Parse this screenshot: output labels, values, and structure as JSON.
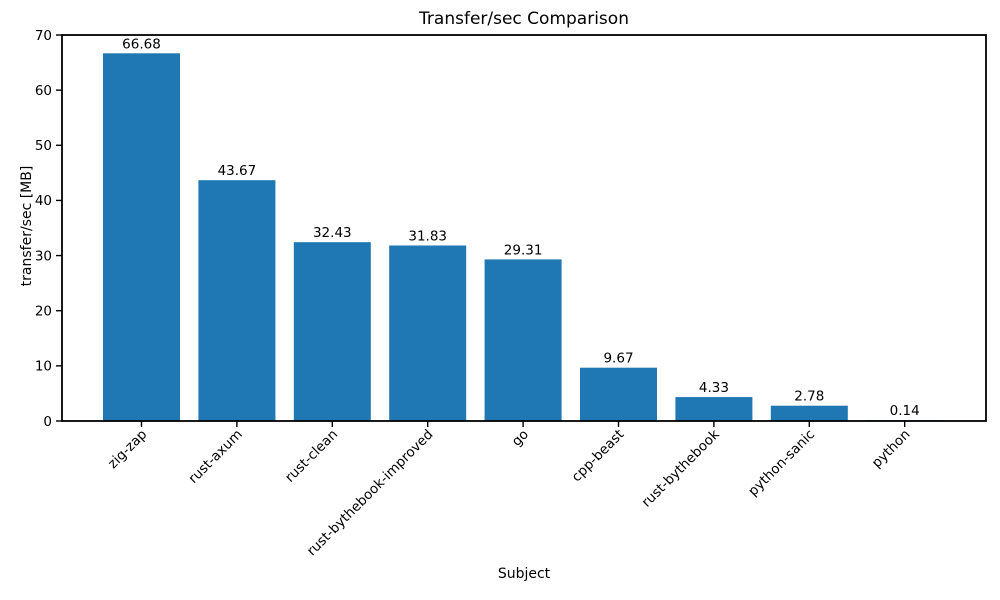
{
  "chart_data": {
    "type": "bar",
    "title": "Transfer/sec Comparison",
    "xlabel": "Subject",
    "ylabel": "transfer/sec [MB]",
    "categories": [
      "zig-zap",
      "rust-axum",
      "rust-clean",
      "rust-bythebook-improved",
      "go",
      "cpp-beast",
      "rust-bythebook",
      "python-sanic",
      "python"
    ],
    "values": [
      66.68,
      43.67,
      32.43,
      31.83,
      29.31,
      9.67,
      4.33,
      2.78,
      0.14
    ],
    "bar_value_labels": [
      "66.68",
      "43.67",
      "32.43",
      "31.83",
      "29.31",
      "9.67",
      "4.33",
      "2.78",
      "0.14"
    ],
    "ylim": [
      0,
      70
    ],
    "yticks": [
      0,
      10,
      20,
      30,
      40,
      50,
      60,
      70
    ],
    "bar_color": "#1f77b4",
    "axis_color": "#000000",
    "grid": false,
    "legend_position": "none",
    "x_tick_rotation_deg": 45
  }
}
